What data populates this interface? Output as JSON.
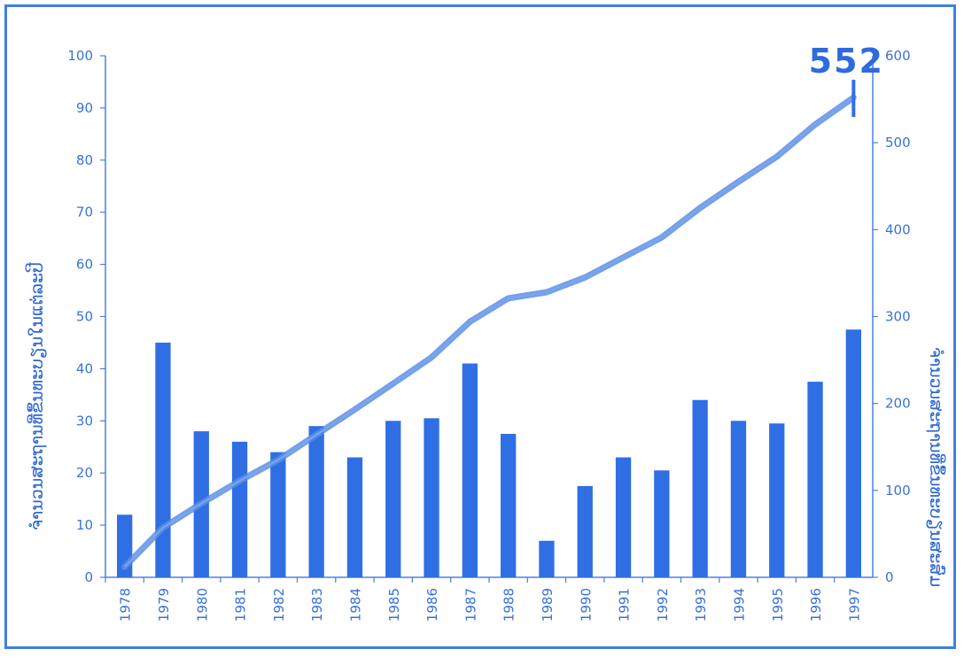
{
  "chart_data": {
    "type": "bar",
    "categories": [
      "1978",
      "1979",
      "1980",
      "1981",
      "1982",
      "1983",
      "1984",
      "1985",
      "1986",
      "1987",
      "1988",
      "1989",
      "1990",
      "1991",
      "1992",
      "1993",
      "1994",
      "1995",
      "1996",
      "1997"
    ],
    "series": [
      {
        "axis": "left",
        "kind": "bar",
        "values": [
          12,
          45,
          28,
          26,
          24,
          29,
          23,
          30,
          30.5,
          41,
          27.5,
          7,
          17.5,
          23,
          20.5,
          34,
          30,
          29.5,
          37.5,
          47.5
        ]
      },
      {
        "axis": "right",
        "kind": "line",
        "values": [
          12,
          57,
          85,
          111,
          135,
          164,
          193,
          223,
          253,
          294,
          321,
          328,
          345,
          368,
          391,
          425,
          455,
          484,
          521,
          552
        ]
      }
    ],
    "ylabel": "ຈຳນວນສະຖານທີ່ຂຶ້ນທະບຽນໃນແຕ່ລະປີ",
    "y2label": "ຈຳນວນສະຖານທີ່ຂຶ້ນທະບຽນສະສົມ",
    "ylim": [
      0,
      100
    ],
    "y2lim": [
      0,
      600
    ],
    "yticks": [
      "0",
      "10",
      "20",
      "30",
      "40",
      "50",
      "60",
      "70",
      "80",
      "90",
      "100"
    ],
    "y2ticks": [
      "0",
      "100",
      "200",
      "300",
      "400",
      "500",
      "600"
    ],
    "annotation": "552",
    "grid": false,
    "colors": {
      "bar": "#2f6fe3",
      "line": "#5b8fe6",
      "axis": "#4a80e0",
      "text": "#3a72d6",
      "frame": "#3f7fe0"
    }
  }
}
